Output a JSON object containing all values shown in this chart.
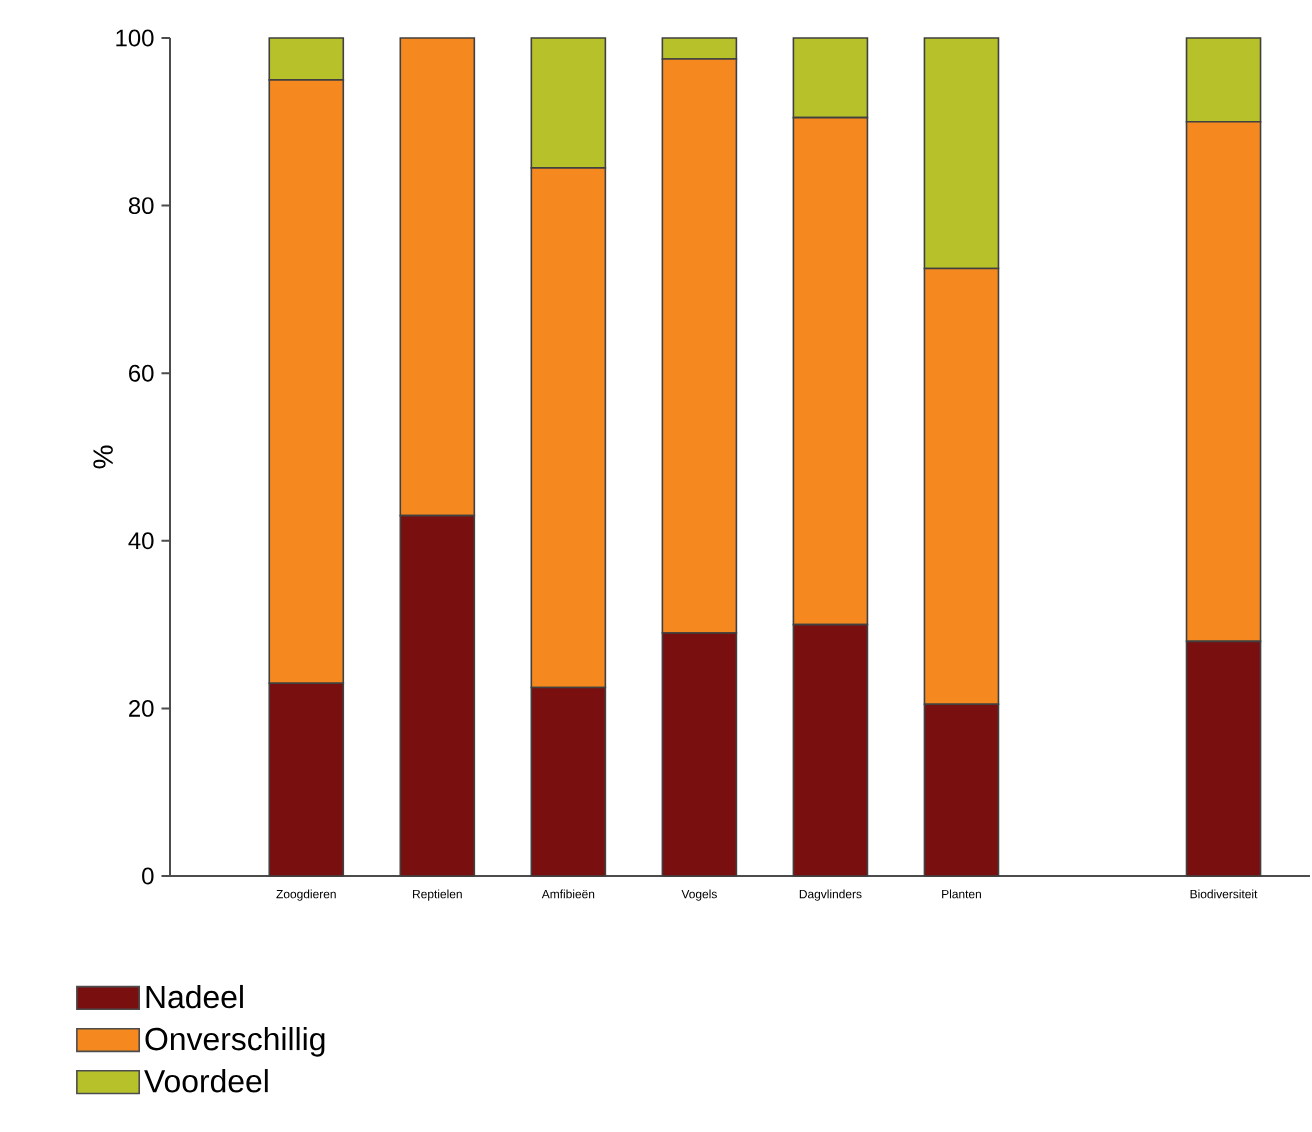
{
  "chart_data": {
    "type": "bar",
    "stacked": true,
    "ylabel": "%",
    "categories": [
      "Zoogdieren",
      "Reptielen",
      "Amfibieën",
      "Vogels",
      "Dagvlinders",
      "Planten",
      null,
      "Biodiversiteit"
    ],
    "series": [
      {
        "name": "Nadeel",
        "color": "#7a0f0f",
        "values": [
          23,
          43,
          22.5,
          29,
          30,
          20.5,
          null,
          28
        ]
      },
      {
        "name": "Onverschillig",
        "color": "#f5891f",
        "values": [
          72,
          57,
          62,
          68.5,
          60.5,
          52,
          null,
          62
        ]
      },
      {
        "name": "Voordeel",
        "color": "#b7c22b",
        "values": [
          5,
          0,
          15.5,
          2.5,
          9.5,
          27.5,
          null,
          10
        ]
      }
    ],
    "ylim": [
      0,
      100
    ],
    "yticks": [
      0,
      20,
      40,
      60,
      80,
      100
    ],
    "grid": false,
    "legend": "bottom left"
  }
}
